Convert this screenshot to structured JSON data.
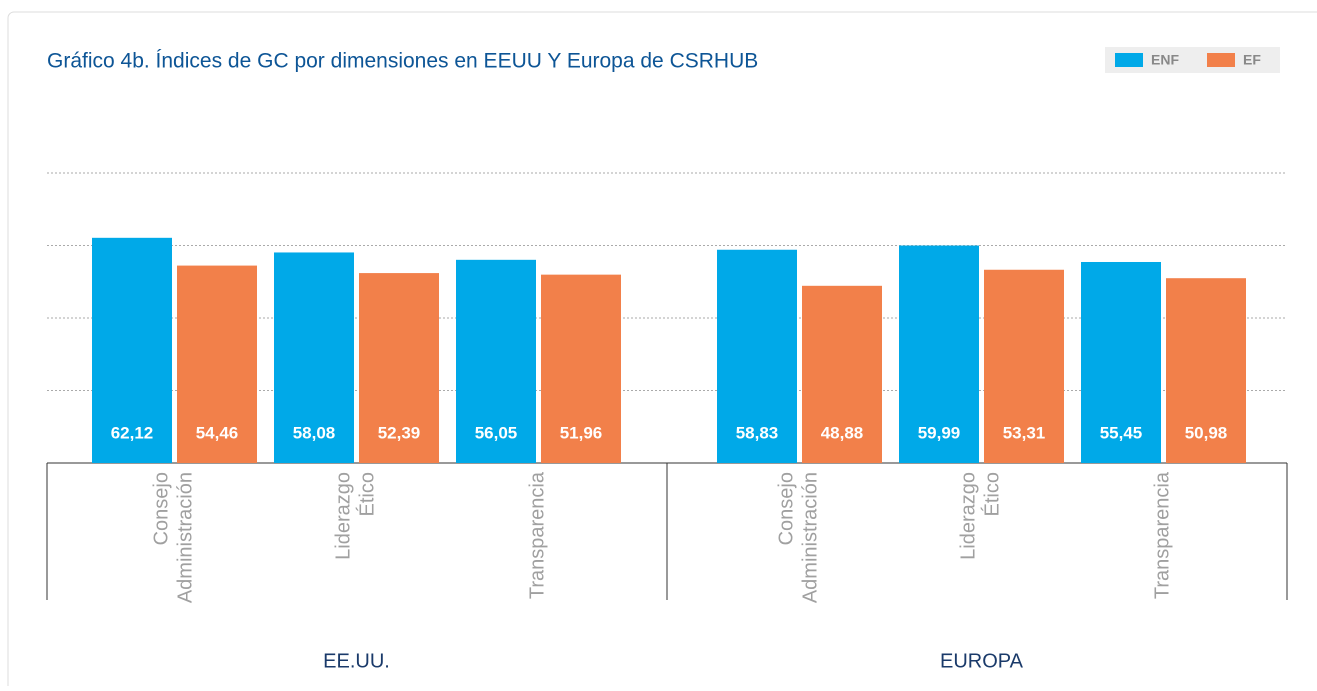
{
  "chart_data": {
    "type": "bar",
    "title": "Gráfico 4b. Índices de GC por dimensiones en EEUU Y Europa de CSRHUB",
    "groups": [
      {
        "name": "EE.UU.",
        "categories": [
          [
            "Consejo",
            "Administración"
          ],
          [
            "Liderazgo",
            "Ético"
          ],
          [
            "Transparencia"
          ]
        ]
      },
      {
        "name": "EUROPA",
        "categories": [
          [
            "Consejo",
            "Administración"
          ],
          [
            "Liderazgo",
            "Ético"
          ],
          [
            "Transparencia"
          ]
        ]
      }
    ],
    "series": [
      {
        "name": "ENF",
        "color": "#00a9e8",
        "values": [
          62.12,
          58.08,
          56.05,
          58.83,
          59.99,
          55.45
        ],
        "value_labels": [
          "62,12",
          "58,08",
          "56,05",
          "58,83",
          "59,99",
          "55,45"
        ]
      },
      {
        "name": "EF",
        "color": "#f2804a",
        "values": [
          54.46,
          52.39,
          51.96,
          48.88,
          53.31,
          50.98
        ],
        "value_labels": [
          "54,46",
          "52,39",
          "51,96",
          "48,88",
          "53,31",
          "50,98"
        ]
      }
    ],
    "ylim": [
      0,
      80
    ],
    "yticks": [
      20,
      40,
      60,
      80
    ],
    "grid": true
  }
}
